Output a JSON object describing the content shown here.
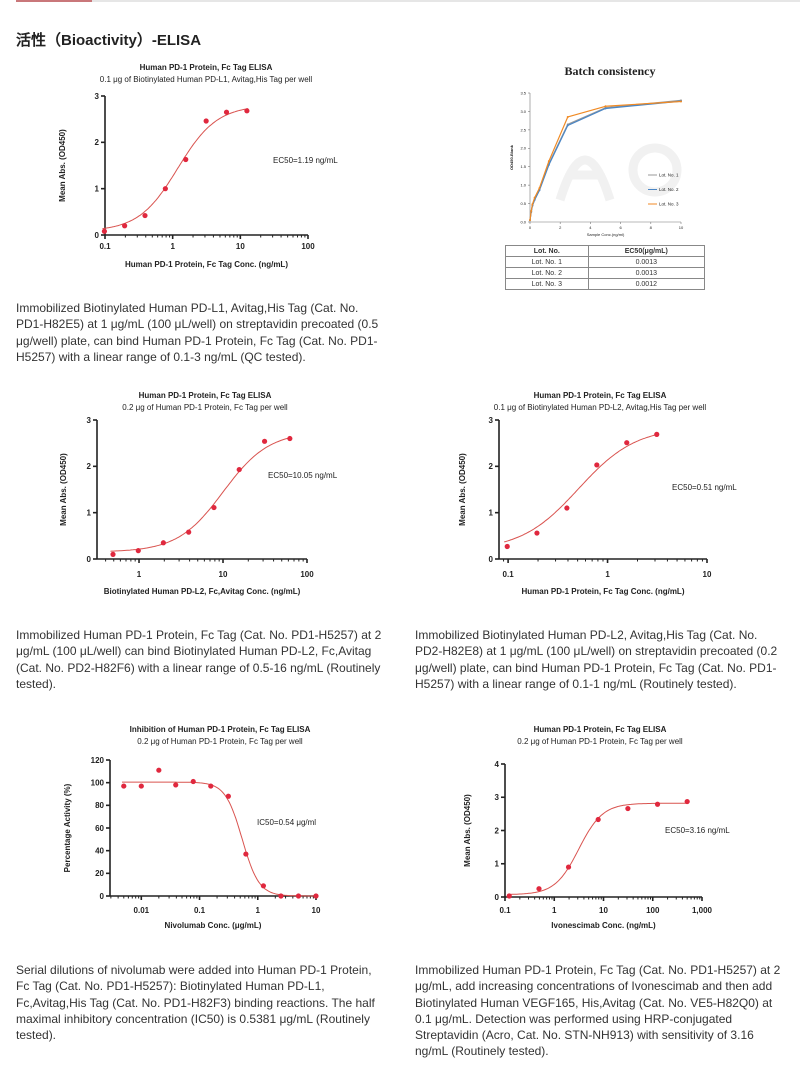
{
  "section_title": "活性（Bioactivity）-ELISA",
  "colors": {
    "accent": "#c9777a",
    "point": "#e0283e",
    "curve": "#d9534f",
    "lot1": "#9a9a9a",
    "lot2": "#4a86c5",
    "lot3": "#f08a24"
  },
  "descriptions": {
    "d1": "Immobilized Biotinylated Human PD-L1, Avitag,His Tag (Cat. No. PD1-H82E5) at 1 μg/mL (100 μL/well) on streptavidin precoated (0.5 μg/well) plate, can bind Human PD-1 Protein, Fc Tag (Cat. No. PD1-H5257) with a linear range of 0.1-3 ng/mL (QC tested).",
    "d2": "Immobilized Human PD-1 Protein, Fc Tag (Cat. No. PD1-H5257) at 2 μg/mL (100 μL/well) can bind Biotinylated Human PD-L2, Fc,Avitag (Cat. No. PD2-H82F6) with a linear range of 0.5-16 ng/mL (Routinely tested).",
    "d3": "Immobilized Biotinylated Human PD-L2, Avitag,His Tag (Cat. No. PD2-H82E8) at 1 μg/mL (100 μL/well) on streptavidin precoated (0.2 μg/well) plate, can bind Human PD-1 Protein, Fc Tag (Cat. No. PD1-H5257) with a linear range of 0.1-1 ng/mL (Routinely tested).",
    "d4": "Serial dilutions of nivolumab were added into Human PD-1 Protein, Fc Tag (Cat. No. PD1-H5257): Biotinylated Human PD-L1, Fc,Avitag,His Tag (Cat. No. PD1-H82F3) binding reactions. The half maximal inhibitory concentration (IC50) is 0.5381 μg/mL (Routinely tested).",
    "d5": "Immobilized Human PD-1 Protein, Fc Tag (Cat. No. PD1-H5257) at 2 μg/mL, add increasing concentrations of Ivonescimab and then add Biotinylated Human VEGF165, His,Avitag (Cat. No. VE5-H82Q0) at 0.1 μg/mL. Detection was performed using HRP-conjugated Streptavidin (Acro, Cat. No. STN-NH913) with sensitivity of 3.16 ng/mL (Routinely tested)."
  },
  "batch_table": {
    "headers": [
      "Lot. No.",
      "EC50(μg/mL)"
    ],
    "rows": [
      [
        "Lot. No. 1",
        "0.0013"
      ],
      [
        "Lot. No. 2",
        "0.0013"
      ],
      [
        "Lot. No. 3",
        "0.0012"
      ]
    ]
  },
  "watermark": "ACROBIOSYSTEMS",
  "chart_data": [
    {
      "type": "scatter",
      "xscale": "log",
      "title": "Human PD-1 Protein, Fc Tag ELISA",
      "subtitle": "0.1 μg of Biotinylated Human PD-L1, Avitag,His Tag per well",
      "xlabel": "Human PD-1 Protein, Fc Tag Conc. (ng/mL)",
      "ylabel": "Mean Abs. (OD450)",
      "xticks": [
        0.1,
        1,
        10,
        100
      ],
      "xtick_labels": [
        "0.1",
        "1",
        "10",
        "100"
      ],
      "yticks": [
        0,
        1,
        2,
        3
      ],
      "xlim": [
        0.1,
        100
      ],
      "ylim": [
        0,
        3
      ],
      "x": [
        0.098,
        0.195,
        0.39,
        0.78,
        1.56,
        3.125,
        6.25,
        12.5
      ],
      "y": [
        0.08,
        0.2,
        0.42,
        1.0,
        1.63,
        2.46,
        2.65,
        2.68
      ],
      "fit": {
        "bottom": 0.08,
        "top": 2.8,
        "ec50": 1.19,
        "hill": 1.5
      },
      "annotation": "EC50=1.19 ng/mL"
    },
    {
      "type": "line",
      "xscale": "linear",
      "title": "Batch consistency",
      "xlabel": "Sample Conc.(ng/ml)",
      "ylabel": "OD450-Blank",
      "xticks": [
        0,
        2,
        4,
        6,
        8,
        10
      ],
      "yticks": [
        0,
        0.5,
        1.0,
        1.5,
        2.0,
        2.5,
        3.0,
        3.5
      ],
      "xlim": [
        0,
        10
      ],
      "ylim": [
        0,
        3.5
      ],
      "legend": "center-right",
      "x": [
        0,
        0.08,
        0.16,
        0.31,
        0.625,
        1.25,
        2.5,
        5,
        10
      ],
      "series": [
        {
          "name": "Lot. No. 1",
          "values": [
            0.05,
            0.28,
            0.45,
            0.62,
            0.88,
            1.58,
            2.65,
            3.1,
            3.3
          ]
        },
        {
          "name": "Lot. No. 2",
          "values": [
            0.05,
            0.27,
            0.44,
            0.6,
            0.86,
            1.55,
            2.62,
            3.08,
            3.28
          ]
        },
        {
          "name": "Lot. No. 3",
          "values": [
            0.05,
            0.3,
            0.48,
            0.66,
            0.92,
            1.65,
            2.85,
            3.14,
            3.27
          ]
        }
      ]
    },
    {
      "type": "scatter",
      "xscale": "log",
      "title": "Human PD-1 Protein, Fc Tag ELISA",
      "subtitle": "0.2 μg of Human PD-1 Protein, Fc Tag per well",
      "xlabel": "Biotinylated Human PD-L2, Fc,Avitag Conc. (ng/mL)",
      "ylabel": "Mean Abs. (OD450)",
      "xticks": [
        1,
        10,
        100
      ],
      "xtick_labels": [
        "1",
        "10",
        "100"
      ],
      "yticks": [
        0,
        1,
        2,
        3
      ],
      "xlim": [
        0.316,
        100
      ],
      "ylim": [
        0,
        3
      ],
      "x": [
        0.49,
        0.98,
        1.95,
        3.9,
        7.8,
        15.6,
        31.25,
        62.5
      ],
      "y": [
        0.1,
        0.18,
        0.35,
        0.58,
        1.11,
        1.93,
        2.54,
        2.6
      ],
      "fit": {
        "bottom": 0.15,
        "top": 2.75,
        "ec50": 10.05,
        "hill": 1.6
      },
      "annotation": "EC50=10.05 ng/mL"
    },
    {
      "type": "scatter",
      "xscale": "log",
      "title": "Human PD-1 Protein, Fc Tag ELISA",
      "subtitle": "0.1 μg of Biotinylated Human PD-L2, Avitag,His Tag per well",
      "xlabel": "Human PD-1 Protein, Fc Tag Conc. (ng/mL)",
      "ylabel": "Mean Abs. (OD450)",
      "xticks": [
        0.1,
        1,
        10
      ],
      "xtick_labels": [
        "0.1",
        "1",
        "10"
      ],
      "yticks": [
        0,
        1,
        2,
        3
      ],
      "xlim": [
        0.081,
        10
      ],
      "ylim": [
        0,
        3
      ],
      "x": [
        0.098,
        0.195,
        0.39,
        0.78,
        1.56,
        3.125
      ],
      "y": [
        0.27,
        0.56,
        1.1,
        2.03,
        2.51,
        2.69
      ],
      "fit": {
        "bottom": 0.18,
        "top": 2.85,
        "ec50": 0.51,
        "hill": 1.5
      },
      "annotation": "EC50=0.51 ng/mL"
    },
    {
      "type": "scatter",
      "xscale": "log",
      "title": "Inhibition of Human PD-1 Protein, Fc Tag ELISA",
      "subtitle": "0.2 μg of Human PD-1 Protein, Fc Tag per well",
      "xlabel": "Nivolumab Conc. (μg/mL)",
      "ylabel": "Percentage Activity (%)",
      "xticks": [
        0.01,
        0.1,
        1,
        10
      ],
      "xtick_labels": [
        "0.01",
        "0.1",
        "1",
        "10"
      ],
      "yticks": [
        0,
        20,
        40,
        60,
        80,
        100,
        120
      ],
      "xlim": [
        0.0029,
        10
      ],
      "ylim": [
        0,
        120
      ],
      "x": [
        0.005,
        0.01,
        0.02,
        0.039,
        0.078,
        0.156,
        0.3125,
        0.625,
        1.25,
        2.5,
        5,
        10
      ],
      "y": [
        97,
        97,
        111,
        98,
        101,
        97,
        88,
        37,
        9,
        0,
        0,
        0
      ],
      "fit": {
        "bottom": 0,
        "top": 100.5,
        "ec50": 0.54,
        "hill": -3
      },
      "annotation": "IC50=0.54 μg/ml"
    },
    {
      "type": "scatter",
      "xscale": "log",
      "title": "Human PD-1 Protein, Fc Tag ELISA",
      "subtitle": "0.2 μg of Human PD-1 Protein, Fc Tag per well",
      "xlabel": "Ivonescimab Conc. (ng/mL)",
      "ylabel": "Mean Abs. (OD450)",
      "xticks": [
        0.1,
        1,
        10,
        100,
        1000
      ],
      "xtick_labels": [
        "0.1",
        "1",
        "10",
        "100",
        "1,000"
      ],
      "yticks": [
        0,
        1,
        2,
        3,
        4
      ],
      "xlim": [
        0.1,
        1000
      ],
      "ylim": [
        0,
        4
      ],
      "x": [
        0.122,
        0.49,
        1.95,
        7.8,
        31.25,
        125,
        500
      ],
      "y": [
        0.03,
        0.25,
        0.9,
        2.33,
        2.66,
        2.79,
        2.87
      ],
      "fit": {
        "bottom": 0.07,
        "top": 2.82,
        "ec50": 3.16,
        "hill": 1.8
      },
      "annotation": "EC50=3.16 ng/mL"
    }
  ]
}
